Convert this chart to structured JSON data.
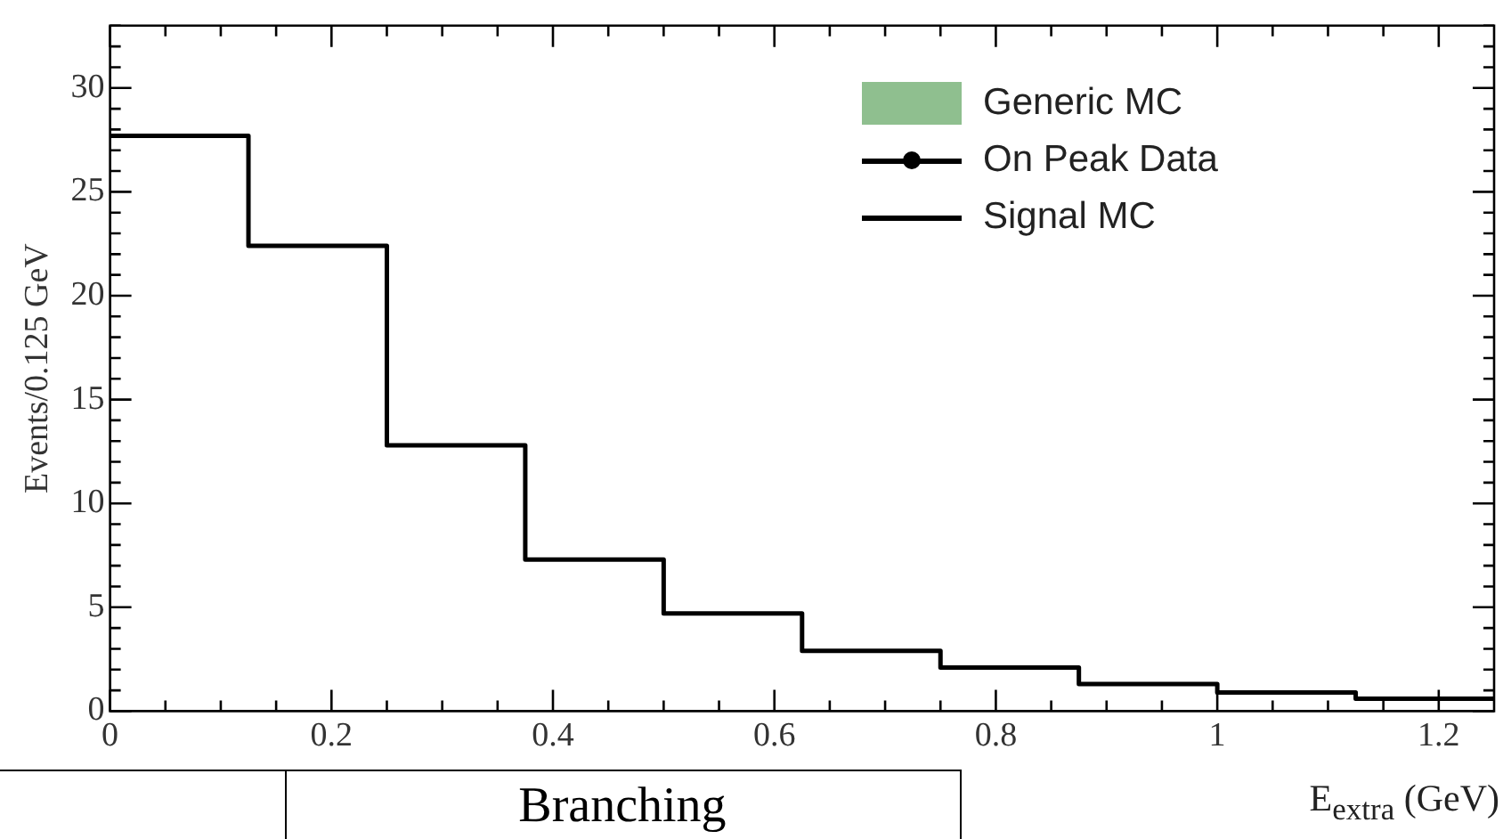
{
  "chart_data": {
    "type": "step",
    "xlabel": "E$_{extra}$ (GeV)",
    "ylabel": "Events/0.125 GeV",
    "x": [
      0,
      0.125,
      0.25,
      0.375,
      0.5,
      0.625,
      0.75,
      0.875,
      1,
      1.125
    ],
    "series": [
      {
        "name": "Generic MC",
        "type": "bar",
        "color": "#8fbf8f",
        "values": [
          null,
          null,
          null,
          null,
          null,
          null,
          null,
          null,
          null,
          null
        ]
      },
      {
        "name": "On Peak Data",
        "type": "scatter",
        "color": "#000000",
        "values": [
          null,
          null,
          null,
          null,
          null,
          null,
          null,
          null,
          null,
          null
        ]
      },
      {
        "name": "Signal MC",
        "color": "#000000",
        "values": [
          27.7,
          22.4,
          12.8,
          7.3,
          4.7,
          2.9,
          2.1,
          1.3,
          0.9,
          0.6
        ]
      }
    ],
    "xlim": [
      0,
      1.25
    ],
    "ylim": [
      0,
      33
    ],
    "xticks": [
      0,
      {
        "value": 0.05,
        "label": null
      },
      {
        "value": 0.1,
        "label": null
      },
      {
        "value": 0.15,
        "label": null
      },
      0.2,
      {
        "value": 0.25,
        "label": null
      },
      {
        "value": 0.3,
        "label": null
      },
      {
        "value": 0.35,
        "label": null
      },
      0.4,
      {
        "value": 0.45,
        "label": null
      },
      {
        "value": 0.5,
        "label": null
      },
      {
        "value": 0.55,
        "label": null
      },
      0.6,
      {
        "value": 0.65,
        "label": null
      },
      {
        "value": 0.7,
        "label": null
      },
      {
        "value": 0.75,
        "label": null
      },
      0.8,
      {
        "value": 0.85,
        "label": null
      },
      {
        "value": 0.9,
        "label": null
      },
      {
        "value": 0.95,
        "label": null
      },
      1,
      {
        "value": 1.05,
        "label": null
      },
      {
        "value": 1.1,
        "label": null
      },
      {
        "value": 1.15,
        "label": null
      },
      1.2
    ],
    "yticks": [
      0,
      {
        "value": 1,
        "label": null
      },
      {
        "value": 2,
        "label": null
      },
      {
        "value": 3,
        "label": null
      },
      {
        "value": 4,
        "label": null
      },
      5,
      {
        "value": 6,
        "label": null
      },
      {
        "value": 7,
        "label": null
      },
      {
        "value": 8,
        "label": null
      },
      {
        "value": 9,
        "label": null
      },
      10,
      {
        "value": 11,
        "label": null
      },
      {
        "value": 12,
        "label": null
      },
      {
        "value": 13,
        "label": null
      },
      {
        "value": 14,
        "label": null
      },
      15,
      {
        "value": 16,
        "label": null
      },
      {
        "value": 17,
        "label": null
      },
      {
        "value": 18,
        "label": null
      },
      {
        "value": 19,
        "label": null
      },
      20,
      {
        "value": 21,
        "label": null
      },
      {
        "value": 22,
        "label": null
      },
      {
        "value": 23,
        "label": null
      },
      {
        "value": 24,
        "label": null
      },
      25,
      {
        "value": 26,
        "label": null
      },
      {
        "value": 27,
        "label": null
      },
      {
        "value": 28,
        "label": null
      },
      {
        "value": 29,
        "label": null
      },
      30,
      {
        "value": 31,
        "label": null
      },
      {
        "value": 32,
        "label": null
      },
      {
        "value": 33,
        "label": null
      }
    ],
    "legend": "top right",
    "grid": false,
    "annotations": [
      "Branching"
    ]
  }
}
